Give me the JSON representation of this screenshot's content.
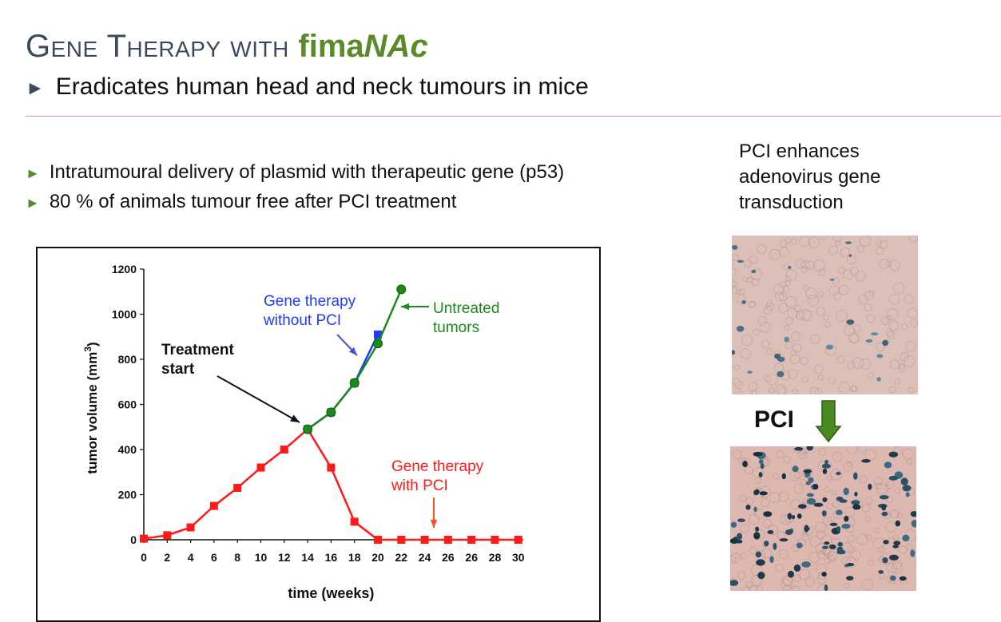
{
  "slide": {
    "title_prefix": "Gene Therapy with ",
    "brand_part1": "fima",
    "brand_part2": "NAc",
    "subtitle": "Eradicates human head and neck tumours in mice",
    "bullets": [
      "Intratumoural delivery of plasmid with therapeutic gene (p53)",
      "80 % of animals tumour free after PCI treatment"
    ],
    "side_text_lines": [
      "PCI enhances",
      "adenovirus gene",
      "transduction"
    ],
    "pci_label": "PCI",
    "colors": {
      "title": "#3b4a5f",
      "brand": "#5a8a2a",
      "rule": "#e8939a",
      "arrow_green": "#4a8a22"
    },
    "icons": [
      "triangle-bullet-icon",
      "down-arrow-icon"
    ]
  },
  "chart_data": {
    "type": "line",
    "xlabel": "time (weeks)",
    "ylabel": "tumor volume (mm3)",
    "ylabel_main": "tumor volume (mm",
    "ylabel_sup": "3",
    "ylabel_close": ")",
    "ylim": [
      0,
      1200
    ],
    "yticks": [
      "0",
      "200",
      "400",
      "600",
      "800",
      "1000",
      "1200"
    ],
    "xtick_labels": [
      "0",
      "2",
      "4",
      "6",
      "8",
      "10",
      "12",
      "14",
      "16",
      "18",
      "20",
      "22",
      "24",
      "26",
      "26",
      "28",
      "30"
    ],
    "grid": false,
    "legend": "none",
    "series": [
      {
        "name": "Gene therapy with PCI",
        "color": "#ff1a1a",
        "marker": "square",
        "points": [
          [
            0,
            5
          ],
          [
            2,
            20
          ],
          [
            4,
            55
          ],
          [
            6,
            150
          ],
          [
            8,
            230
          ],
          [
            10,
            320
          ],
          [
            12,
            400
          ],
          [
            14,
            490
          ],
          [
            16,
            320
          ],
          [
            18,
            80
          ],
          [
            20,
            0
          ],
          [
            22,
            0
          ],
          [
            24,
            0
          ],
          [
            26,
            0
          ],
          [
            26,
            0
          ],
          [
            28,
            0
          ],
          [
            30,
            0
          ]
        ]
      },
      {
        "name": "Gene therapy without PCI",
        "color": "#1f3cff",
        "marker": "square",
        "points": [
          [
            14,
            490
          ],
          [
            16,
            565
          ],
          [
            18,
            695
          ],
          [
            20,
            910
          ]
        ]
      },
      {
        "name": "Untreated tumors",
        "color": "#1a8a1a",
        "marker": "circle",
        "points": [
          [
            14,
            490
          ],
          [
            16,
            565
          ],
          [
            18,
            695
          ],
          [
            20,
            870
          ],
          [
            22,
            1110
          ]
        ]
      }
    ],
    "annotations": [
      {
        "lines": [
          "Gene therapy",
          "without PCI"
        ],
        "color": "#1f3cff"
      },
      {
        "lines": [
          "Untreated",
          "tumors"
        ],
        "color": "#1a8a1a"
      },
      {
        "lines": [
          "Treatment",
          "start"
        ],
        "color": "#111111"
      },
      {
        "lines": [
          "Gene therapy",
          "with PCI"
        ],
        "color": "#ff1a1a"
      }
    ]
  }
}
